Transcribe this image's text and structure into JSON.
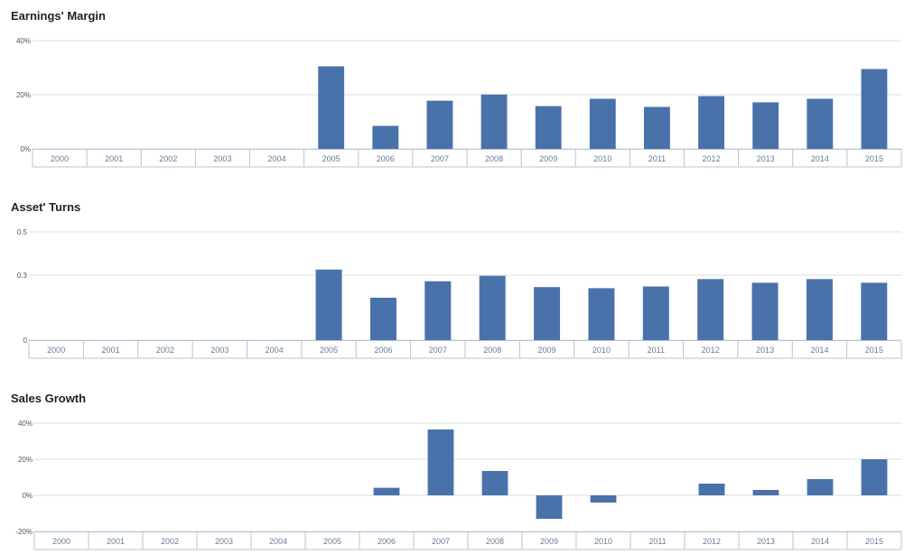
{
  "colors": {
    "bar": "#4a72aa",
    "grid": "#dcdcdc",
    "axis": "#b8c4d6",
    "tick_text": "#555555",
    "category_text": "#6a7a95"
  },
  "chart_data": [
    {
      "type": "bar",
      "title": "Earnings' Margin",
      "categories": [
        "2000",
        "2001",
        "2002",
        "2003",
        "2004",
        "2005",
        "2006",
        "2007",
        "2008",
        "2009",
        "2010",
        "2011",
        "2012",
        "2013",
        "2014",
        "2015"
      ],
      "values": [
        null,
        null,
        null,
        null,
        null,
        30.5,
        8.5,
        17.8,
        20.1,
        15.8,
        18.5,
        15.5,
        19.5,
        17.2,
        18.5,
        29.5
      ],
      "yticks": [
        {
          "value": 40,
          "label": "40%"
        },
        {
          "value": 20,
          "label": "20%"
        },
        {
          "value": 0,
          "label": "0%"
        }
      ],
      "ylim": [
        0,
        40
      ],
      "grid": true,
      "legend": "none"
    },
    {
      "type": "bar",
      "title": "Asset' Turns",
      "categories": [
        "2000",
        "2001",
        "2002",
        "2003",
        "2004",
        "2005",
        "2006",
        "2007",
        "2008",
        "2009",
        "2010",
        "2011",
        "2012",
        "2013",
        "2014",
        "2015"
      ],
      "values": [
        null,
        null,
        null,
        null,
        null,
        0.326,
        0.196,
        0.272,
        0.297,
        0.245,
        0.24,
        0.248,
        0.282,
        0.265,
        0.282,
        0.265
      ],
      "yticks": [
        {
          "value": 0.5,
          "label": "0.5"
        },
        {
          "value": 0.3,
          "label": "0.3"
        },
        {
          "value": 0,
          "label": "0"
        }
      ],
      "ylim": [
        0,
        0.5
      ],
      "grid": true,
      "legend": "none"
    },
    {
      "type": "bar",
      "title": "Sales Growth",
      "categories": [
        "2000",
        "2001",
        "2002",
        "2003",
        "2004",
        "2005",
        "2006",
        "2007",
        "2008",
        "2009",
        "2010",
        "2011",
        "2012",
        "2013",
        "2014",
        "2015"
      ],
      "values": [
        null,
        null,
        null,
        null,
        null,
        null,
        4.2,
        36.5,
        13.5,
        -13.0,
        -4.0,
        null,
        6.5,
        3.0,
        9.0,
        20.0
      ],
      "yticks": [
        {
          "value": 40,
          "label": "40%"
        },
        {
          "value": 20,
          "label": "20%"
        },
        {
          "value": 0,
          "label": "0%"
        },
        {
          "value": -20,
          "label": "-20%"
        }
      ],
      "ylim": [
        -20,
        40
      ],
      "grid": true,
      "legend": "none"
    }
  ]
}
